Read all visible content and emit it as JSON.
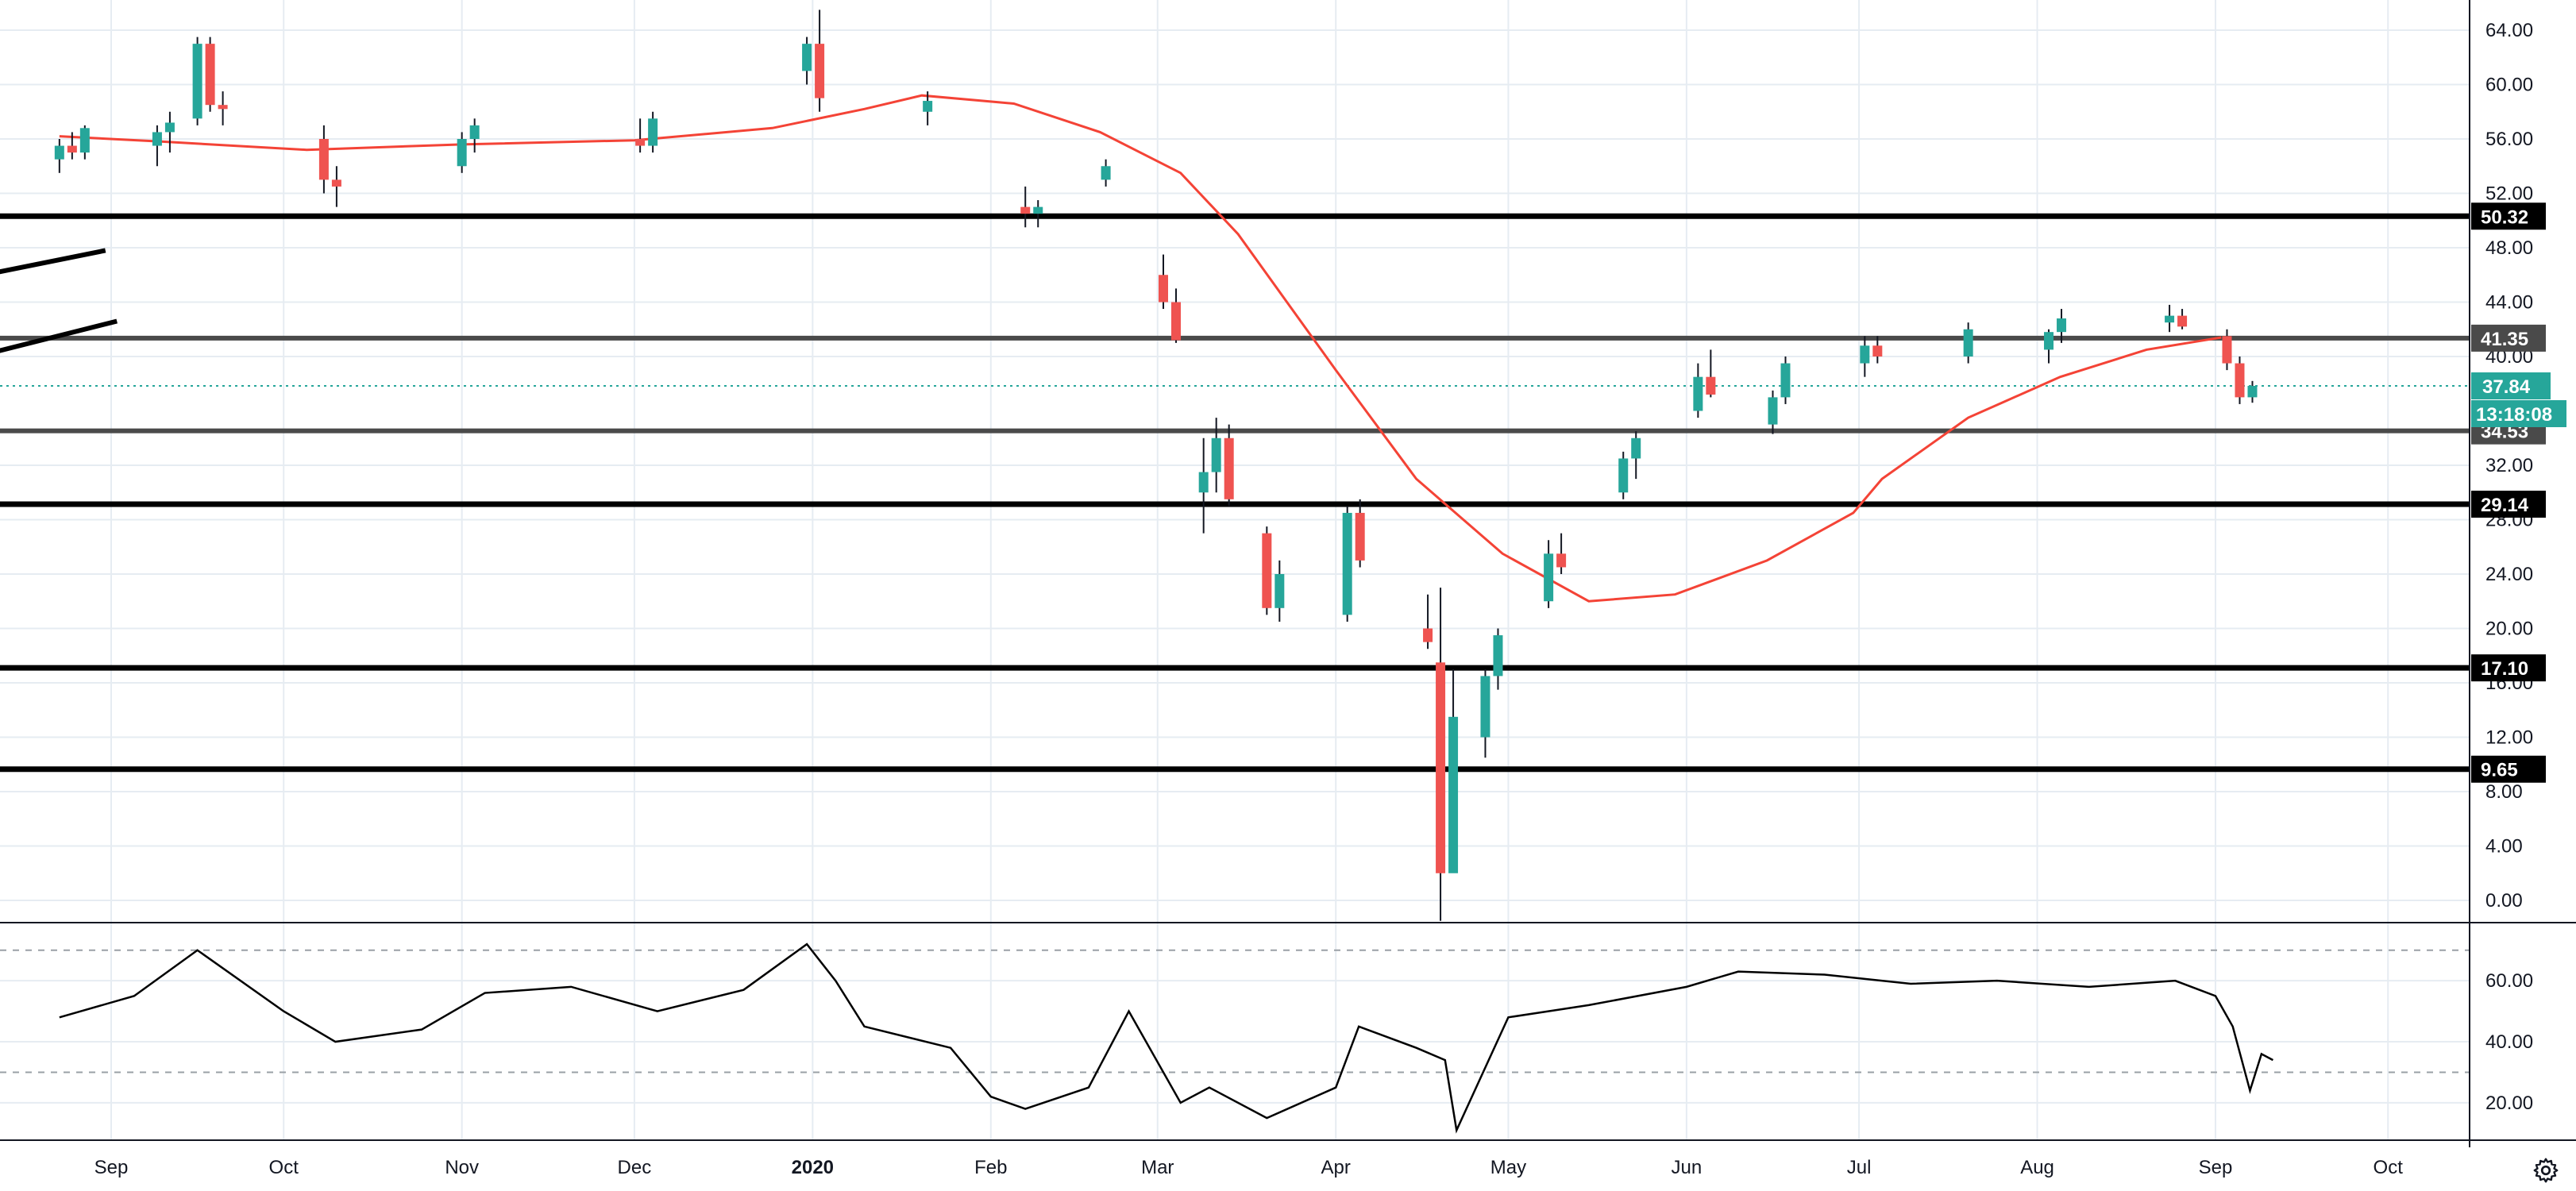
{
  "colors": {
    "up": "#26a69a",
    "down": "#ef5350",
    "ma": "#f44336",
    "grid": "#e6ecf2",
    "price_line": "#26a69a",
    "level": "#000000",
    "level_mid": "#4a4a4a",
    "rsi": "#000000"
  },
  "icons": {
    "settings": "gear-icon"
  },
  "chart_data": [
    {
      "type": "candlestick",
      "title": "",
      "xlabel": "",
      "ylabel": "",
      "ylim": [
        -2,
        66
      ],
      "y_ticks": [
        "64.00",
        "60.00",
        "56.00",
        "52.00",
        "48.00",
        "44.00",
        "40.00",
        "32.00",
        "28.00",
        "24.00",
        "20.00",
        "16.00",
        "12.00",
        "8.00",
        "4.00",
        "0.00"
      ],
      "x_ticks": [
        "Sep",
        "Oct",
        "Nov",
        "Dec",
        "2020",
        "Feb",
        "Mar",
        "Apr",
        "May",
        "Jun",
        "Jul",
        "Aug",
        "Sep",
        "Oct"
      ],
      "last_price": "37.84",
      "countdown": "13:18:08",
      "levels": [
        {
          "label": "50.32",
          "value": 50.32,
          "style": "strong"
        },
        {
          "label": "41.35",
          "value": 41.35,
          "style": "mid"
        },
        {
          "label": "34.53",
          "value": 34.53,
          "style": "mid"
        },
        {
          "label": "29.14",
          "value": 29.14,
          "style": "strong"
        },
        {
          "label": "17.10",
          "value": 17.1,
          "style": "strong"
        },
        {
          "label": "9.65",
          "value": 9.65,
          "style": "strong"
        }
      ],
      "trendlines": [
        {
          "from": {
            "x": "Jun 3",
            "y": 40.2
          },
          "to": {
            "x": "Aug 31",
            "y": 47.8
          }
        },
        {
          "from": {
            "x": "Jun 16",
            "y": 34.3
          },
          "to": {
            "x": "Sep 2",
            "y": 42.6
          }
        }
      ],
      "moving_average": [
        [
          "Aug 23",
          56.2
        ],
        [
          "Sep 10",
          55.8
        ],
        [
          "Oct 5",
          55.2
        ],
        [
          "Nov 1",
          55.6
        ],
        [
          "Dec 1",
          55.9
        ],
        [
          "Dec 25",
          56.8
        ],
        [
          "Jan 10",
          58.2
        ],
        [
          "Jan 20",
          59.2
        ],
        [
          "Feb 5",
          58.6
        ],
        [
          "Feb 20",
          56.5
        ],
        [
          "Mar 5",
          53.5
        ],
        [
          "Mar 15",
          49.0
        ],
        [
          "Apr 1",
          39.0
        ],
        [
          "Apr 15",
          31.0
        ],
        [
          "Apr 30",
          25.5
        ],
        [
          "May 15",
          22.0
        ],
        [
          "May 30",
          22.5
        ],
        [
          "Jun 15",
          25.0
        ],
        [
          "Jun 30",
          28.5
        ],
        [
          "Jul 5",
          31.0
        ],
        [
          "Jul 20",
          35.5
        ],
        [
          "Aug 5",
          38.5
        ],
        [
          "Aug 20",
          40.5
        ],
        [
          "Sep 2",
          41.4
        ]
      ],
      "series": [
        {
          "date": "Aug 23",
          "values": [
            [
              54.5,
              56.0,
              53.5,
              55.5
            ],
            [
              55.5,
              56.5,
              54.5,
              55.0
            ],
            [
              55.0,
              57.0,
              54.5,
              56.8
            ]
          ]
        },
        {
          "date": "Sep 9",
          "values": [
            [
              55.5,
              57.0,
              54.0,
              56.5
            ],
            [
              56.5,
              58.0,
              55.0,
              57.2
            ]
          ]
        },
        {
          "date": "Sep 16",
          "values": [
            [
              57.5,
              63.5,
              57.0,
              63.0
            ],
            [
              63.0,
              63.5,
              58.0,
              58.5
            ],
            [
              58.5,
              59.5,
              57.0,
              58.2
            ]
          ]
        },
        {
          "date": "Oct 8",
          "values": [
            [
              56.0,
              57.0,
              52.0,
              53.0
            ],
            [
              53.0,
              54.0,
              51.0,
              52.5
            ]
          ]
        },
        {
          "date": "Nov 1",
          "values": [
            [
              54.0,
              56.5,
              53.5,
              56.0
            ],
            [
              56.0,
              57.5,
              55.0,
              57.0
            ]
          ]
        },
        {
          "date": "Dec 2",
          "values": [
            [
              56.0,
              57.5,
              55.0,
              55.5
            ],
            [
              55.5,
              58.0,
              55.0,
              57.5
            ]
          ]
        },
        {
          "date": "Dec 31",
          "values": [
            [
              61.0,
              63.5,
              60.0,
              63.0
            ],
            [
              63.0,
              65.5,
              58.0,
              59.0
            ]
          ]
        },
        {
          "date": "Jan 21",
          "values": [
            [
              58.0,
              59.5,
              57.0,
              58.8
            ]
          ]
        },
        {
          "date": "Feb 7",
          "values": [
            [
              51.0,
              52.5,
              49.5,
              50.5
            ],
            [
              50.5,
              51.5,
              49.5,
              51.0
            ]
          ]
        },
        {
          "date": "Feb 21",
          "values": [
            [
              53.0,
              54.5,
              52.5,
              54.0
            ]
          ]
        },
        {
          "date": "Mar 2",
          "values": [
            [
              46.0,
              47.5,
              43.5,
              44.0
            ],
            [
              44.0,
              45.0,
              41.0,
              41.2
            ]
          ]
        },
        {
          "date": "Mar 9",
          "values": [
            [
              30.0,
              34.0,
              27.0,
              31.5
            ],
            [
              31.5,
              35.5,
              30.0,
              34.0
            ],
            [
              34.0,
              35.0,
              29.0,
              29.5
            ]
          ]
        },
        {
          "date": "Mar 20",
          "values": [
            [
              27.0,
              27.5,
              21.0,
              21.5
            ],
            [
              21.5,
              25.0,
              20.5,
              24.0
            ]
          ]
        },
        {
          "date": "Apr 3",
          "values": [
            [
              21.0,
              29.0,
              20.5,
              28.5
            ],
            [
              28.5,
              29.5,
              24.5,
              25.0
            ]
          ]
        },
        {
          "date": "Apr 17",
          "values": [
            [
              20.0,
              22.5,
              18.5,
              19.0
            ],
            [
              17.5,
              23.0,
              -1.5,
              2.0
            ],
            [
              2.0,
              17.0,
              6.0,
              13.5
            ]
          ]
        },
        {
          "date": "Apr 27",
          "values": [
            [
              12.0,
              17.0,
              10.5,
              16.5
            ],
            [
              16.5,
              20.0,
              15.5,
              19.5
            ]
          ]
        },
        {
          "date": "May 8",
          "values": [
            [
              22.0,
              26.5,
              21.5,
              25.5
            ],
            [
              25.5,
              27.0,
              24.0,
              24.5
            ]
          ]
        },
        {
          "date": "May 21",
          "values": [
            [
              30.0,
              33.0,
              29.5,
              32.5
            ],
            [
              32.5,
              34.5,
              31.0,
              34.0
            ]
          ]
        },
        {
          "date": "Jun 3",
          "values": [
            [
              36.0,
              39.5,
              35.5,
              38.5
            ],
            [
              38.5,
              40.5,
              37.0,
              37.2
            ]
          ]
        },
        {
          "date": "Jun 16",
          "values": [
            [
              35.0,
              37.5,
              34.3,
              37.0
            ],
            [
              37.0,
              40.0,
              36.5,
              39.5
            ]
          ]
        },
        {
          "date": "Jul 2",
          "values": [
            [
              39.5,
              41.5,
              38.5,
              40.8
            ],
            [
              40.8,
              41.5,
              39.5,
              40.0
            ]
          ]
        },
        {
          "date": "Jul 20",
          "values": [
            [
              40.0,
              42.5,
              39.5,
              42.0
            ]
          ]
        },
        {
          "date": "Aug 3",
          "values": [
            [
              40.5,
              42.0,
              39.5,
              41.8
            ],
            [
              41.8,
              43.5,
              41.0,
              42.8
            ]
          ]
        },
        {
          "date": "Aug 24",
          "values": [
            [
              42.5,
              43.8,
              41.8,
              43.0
            ],
            [
              43.0,
              43.5,
              42.0,
              42.2
            ]
          ]
        },
        {
          "date": "Sep 3",
          "values": [
            [
              41.5,
              42.0,
              39.0,
              39.5
            ],
            [
              39.5,
              40.0,
              36.5,
              37.0
            ],
            [
              37.0,
              38.2,
              36.6,
              37.84
            ]
          ]
        }
      ]
    },
    {
      "type": "line",
      "name": "",
      "ylim": [
        8,
        78
      ],
      "y_ticks": [
        "60.00",
        "40.00",
        "20.00"
      ],
      "bands": [
        70,
        30
      ],
      "series": [
        {
          "name": "",
          "x": [
            "Aug 23",
            "Sep 5",
            "Sep 16",
            "Oct 1",
            "Oct 10",
            "Oct 25",
            "Nov 5",
            "Nov 20",
            "Dec 5",
            "Dec 20",
            "Dec 31",
            "Jan 5",
            "Jan 10",
            "Jan 25",
            "Feb 1",
            "Feb 7",
            "Feb 18",
            "Feb 25",
            "Mar 5",
            "Mar 10",
            "Mar 20",
            "Apr 1",
            "Apr 5",
            "Apr 15",
            "Apr 20",
            "Apr 22",
            "May 1",
            "May 15",
            "Jun 1",
            "Jun 10",
            "Jun 25",
            "Jul 10",
            "Jul 25",
            "Aug 10",
            "Aug 25",
            "Sep 1",
            "Sep 4",
            "Sep 7",
            "Sep 9",
            "Sep 11"
          ],
          "values": [
            48,
            55,
            70,
            50,
            40,
            44,
            56,
            58,
            50,
            57,
            72,
            60,
            45,
            38,
            22,
            18,
            25,
            50,
            20,
            25,
            15,
            25,
            45,
            38,
            34,
            11,
            48,
            52,
            58,
            63,
            62,
            59,
            60,
            58,
            60,
            55,
            45,
            24,
            36,
            34
          ]
        }
      ]
    }
  ]
}
